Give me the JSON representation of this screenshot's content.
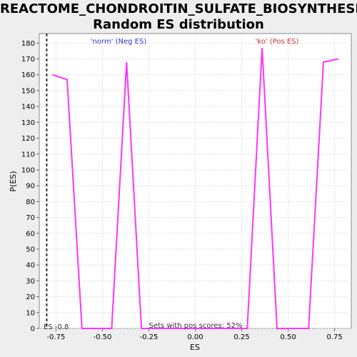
{
  "chart_data": {
    "type": "line",
    "title": "REACTOME_CHONDROITIN_SULFATE_BIOSYNTHESIS: Random ES distribution",
    "title_lines": [
      "REACTOME_CHONDROITIN_SULFATE_BIOSYNTHESIS:",
      "Random ES distribution"
    ],
    "xlabel": "ES",
    "ylabel": "P(ES)",
    "xlim": [
      -0.84,
      0.84
    ],
    "ylim": [
      0,
      186
    ],
    "xticks": [
      -0.75,
      -0.5,
      -0.25,
      0.0,
      0.25,
      0.5,
      0.75
    ],
    "xtick_labels": [
      "-0.75",
      "-0.50",
      "-0.25",
      "0.00",
      "0.25",
      "0.50",
      "0.75"
    ],
    "yticks": [
      0,
      10,
      20,
      30,
      40,
      50,
      60,
      70,
      80,
      90,
      100,
      110,
      120,
      130,
      140,
      150,
      160,
      170,
      180
    ],
    "grid": true,
    "series": [
      {
        "color": "#ff33ff",
        "x": [
          -0.77,
          -0.69,
          -0.61,
          -0.53,
          -0.45,
          -0.37,
          -0.29,
          -0.21,
          -0.13,
          -0.05,
          0.03,
          0.11,
          0.19,
          0.28,
          0.36,
          0.44,
          0.52,
          0.61,
          0.69,
          0.77
        ],
        "y": [
          160,
          157,
          0,
          0,
          0,
          168,
          0,
          0,
          0,
          0,
          0,
          0,
          0,
          0,
          177,
          0,
          0,
          0,
          168,
          170
        ]
      }
    ],
    "vline": {
      "x": -0.8,
      "style": "dashed",
      "color": "#333333",
      "label": "ES -0.8"
    },
    "annotations": {
      "neg": "'norm' (Neg ES)",
      "pos": "'ko' (Pos ES)",
      "sets": "Sets with pos scores: 52%"
    }
  }
}
